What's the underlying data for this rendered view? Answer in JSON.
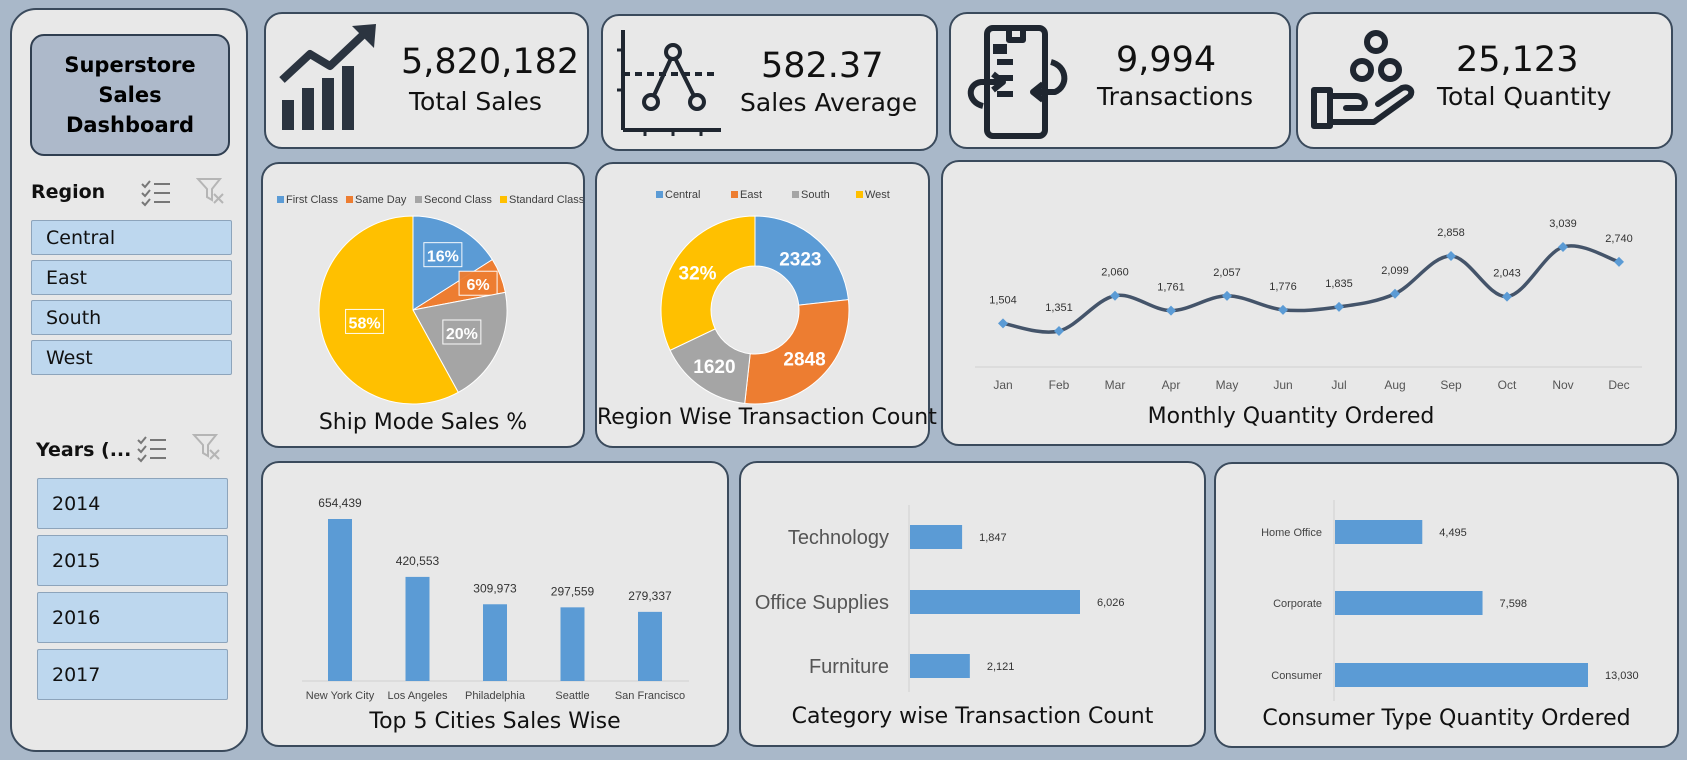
{
  "sidebar": {
    "title": "Superstore Sales Dashboard",
    "region_header": "Region",
    "regions": [
      "Central",
      "East",
      "South",
      "West"
    ],
    "years_header": "Years (...",
    "years": [
      "2014",
      "2015",
      "2016",
      "2017"
    ]
  },
  "kpis": [
    {
      "value": "5,820,182",
      "label": "Total Sales",
      "icon": "growth-chart-icon"
    },
    {
      "value": "582.37",
      "label": "Sales Average",
      "icon": "average-line-icon"
    },
    {
      "value": "9,994",
      "label": "Transactions",
      "icon": "transaction-receipt-icon"
    },
    {
      "value": "25,123",
      "label": "Total Quantity",
      "icon": "hand-coins-icon"
    }
  ],
  "colors": {
    "blue": "#5b9bd5",
    "orange": "#ed7d31",
    "gray": "#a5a5a5",
    "gold": "#ffc000",
    "line": "#44546a"
  },
  "chart_data": [
    {
      "type": "pie",
      "title": "Ship Mode Sales %",
      "legend": "top",
      "categories": [
        "First Class",
        "Same Day",
        "Second Class",
        "Standard Class"
      ],
      "values": [
        16,
        6,
        20,
        58
      ],
      "labels": [
        "16%",
        "6%",
        "20%",
        "58%"
      ]
    },
    {
      "type": "pie",
      "title": "Region Wise Transaction Count",
      "legend": "top",
      "categories": [
        "Central",
        "East",
        "South",
        "West"
      ],
      "values": [
        2323,
        2848,
        1620,
        3203
      ],
      "labels": [
        "2323",
        "2848",
        "1620",
        "32%"
      ]
    },
    {
      "type": "line",
      "title": "Monthly Quantity Ordered",
      "categories": [
        "Jan",
        "Feb",
        "Mar",
        "Apr",
        "May",
        "Jun",
        "Jul",
        "Aug",
        "Sep",
        "Oct",
        "Nov",
        "Dec"
      ],
      "values": [
        1504,
        1351,
        2060,
        1761,
        2057,
        1776,
        1835,
        2099,
        2858,
        2043,
        3039,
        2740
      ],
      "labels": [
        "1,504",
        "1,351",
        "2,060",
        "1,761",
        "2,057",
        "1,776",
        "1,835",
        "2,099",
        "2,858",
        "2,043",
        "3,039",
        "2,740"
      ]
    },
    {
      "type": "bar",
      "title": "Top 5 Cities Sales Wise",
      "categories": [
        "New York City",
        "Los Angeles",
        "Philadelphia",
        "Seattle",
        "San Francisco"
      ],
      "values": [
        654439,
        420553,
        309973,
        297559,
        279337
      ],
      "labels": [
        "654,439",
        "420,553",
        "309,973",
        "297,559",
        "279,337"
      ]
    },
    {
      "type": "bar",
      "orientation": "horizontal",
      "title": "Category wise Transaction Count",
      "categories": [
        "Technology",
        "Office Supplies",
        "Furniture"
      ],
      "values": [
        1847,
        6026,
        2121
      ],
      "labels": [
        "1,847",
        "6,026",
        "2,121"
      ]
    },
    {
      "type": "bar",
      "orientation": "horizontal",
      "title": "Consumer Type Quantity Ordered",
      "categories": [
        "Home Office",
        "Corporate",
        "Consumer"
      ],
      "values": [
        4495,
        7598,
        13030
      ],
      "labels": [
        "4,495",
        "7,598",
        "13,030"
      ]
    }
  ]
}
